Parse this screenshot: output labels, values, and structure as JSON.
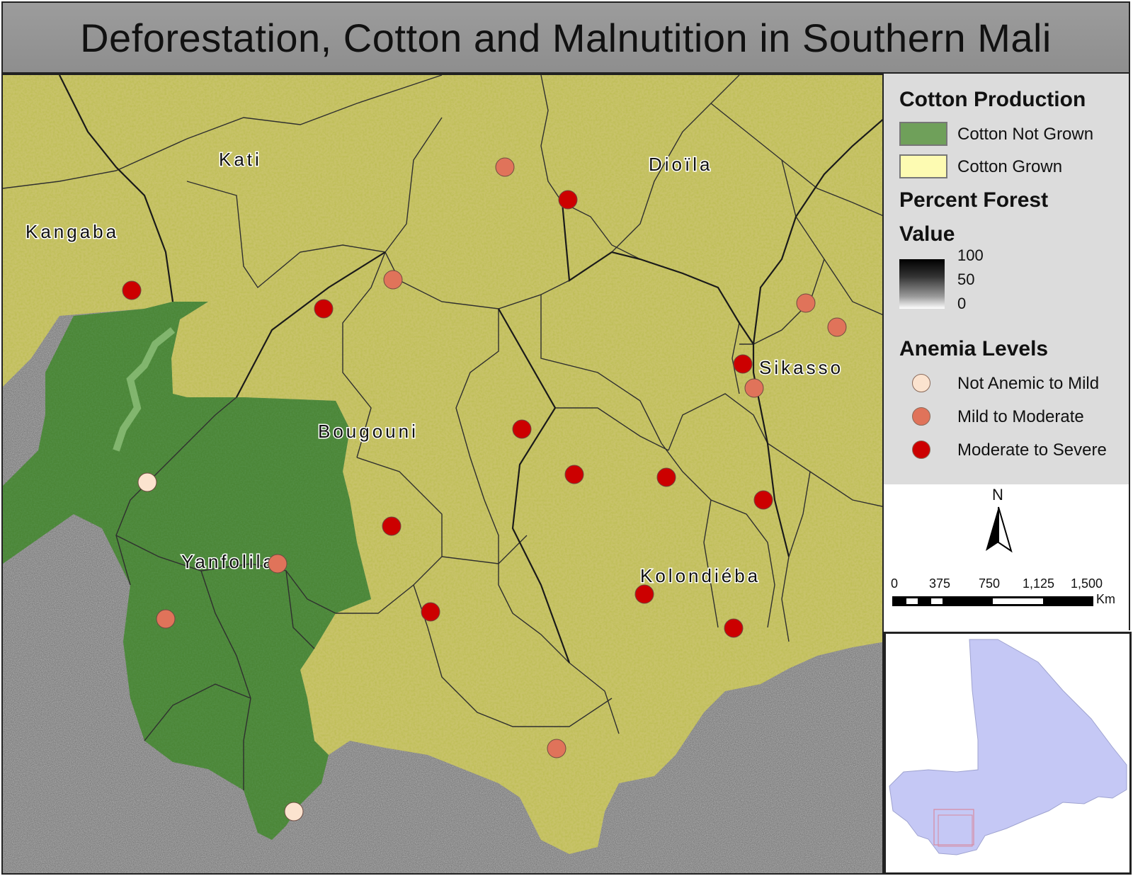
{
  "title": "Deforestation, Cotton and Malnutition in Southern Mali",
  "legend": {
    "cotton_heading": "Cotton Production",
    "cotton_items": [
      {
        "label": "Cotton Not Grown",
        "color": "#6fa05a"
      },
      {
        "label": "Cotton Grown",
        "color": "#fdfbb2"
      }
    ],
    "forest_heading": "Percent Forest",
    "forest_subheading": "Value",
    "forest_scale": {
      "high": "100",
      "mid": "50",
      "low": "0"
    },
    "anemia_heading": "Anemia Levels",
    "anemia_items": [
      {
        "label": "Not Anemic to Mild",
        "color": "#fbe3cf"
      },
      {
        "label": "Mild to Moderate",
        "color": "#e0735a"
      },
      {
        "label": "Moderate to Severe",
        "color": "#cc0000"
      }
    ]
  },
  "north_arrow": {
    "label": "N"
  },
  "scale_bar": {
    "ticks": [
      "0",
      "375",
      "750",
      "1,125",
      "1,500"
    ],
    "unit": "Km"
  },
  "map": {
    "place_labels": [
      "Kati",
      "Dioïla",
      "Kangaba",
      "Bougouni",
      "Sikasso",
      "Yanfolila",
      "Kolondiéba"
    ],
    "colors": {
      "cotton_grown_fill": "#c9c56a",
      "cotton_not_grown_fill": "#4f8a3a",
      "non_cotton_area_fill": "#7a7a7a",
      "district_boundary": "#333333",
      "inset_country_fill": "#c5c8f5"
    }
  }
}
